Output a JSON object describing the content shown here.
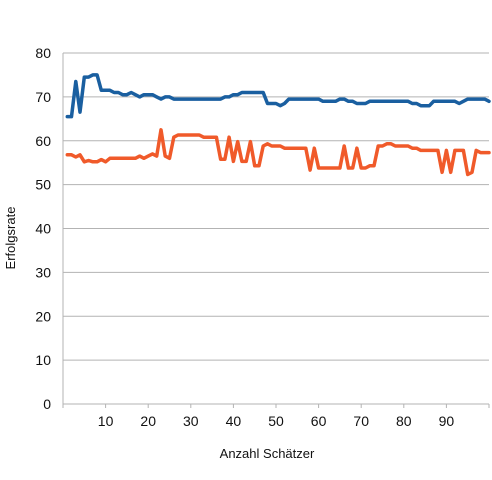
{
  "chart_data": {
    "type": "line",
    "title": "",
    "xlabel": "Anzahl  Schätzer",
    "ylabel": "Erfolgsrate",
    "xlim": [
      0,
      100
    ],
    "ylim": [
      0,
      80
    ],
    "x_ticks": [
      10,
      20,
      30,
      40,
      50,
      60,
      70,
      80,
      90
    ],
    "y_ticks": [
      0,
      10,
      20,
      30,
      40,
      50,
      60,
      70,
      80
    ],
    "grid": "horizontal",
    "legend": "none",
    "x": [
      1,
      2,
      3,
      4,
      5,
      6,
      7,
      8,
      9,
      10,
      11,
      12,
      13,
      14,
      15,
      16,
      17,
      18,
      19,
      20,
      21,
      22,
      23,
      24,
      25,
      26,
      27,
      28,
      29,
      30,
      31,
      32,
      33,
      34,
      35,
      36,
      37,
      38,
      39,
      40,
      41,
      42,
      43,
      44,
      45,
      46,
      47,
      48,
      49,
      50,
      51,
      52,
      53,
      54,
      55,
      56,
      57,
      58,
      59,
      60,
      61,
      62,
      63,
      64,
      65,
      66,
      67,
      68,
      69,
      70,
      71,
      72,
      73,
      74,
      75,
      76,
      77,
      78,
      79,
      80,
      81,
      82,
      83,
      84,
      85,
      86,
      87,
      88,
      89,
      90,
      91,
      92,
      93,
      94,
      95,
      96,
      97,
      98,
      99,
      100
    ],
    "series": [
      {
        "color": "#1a5fa0",
        "values": [
          65.5,
          65.5,
          73.5,
          66.5,
          74.5,
          74.5,
          75,
          75,
          71.5,
          71.5,
          71.5,
          71,
          71,
          70.5,
          70.5,
          71,
          70.5,
          70,
          70.5,
          70.5,
          70.5,
          70,
          69.5,
          70,
          70,
          69.5,
          69.5,
          69.5,
          69.5,
          69.5,
          69.5,
          69.5,
          69.5,
          69.5,
          69.5,
          69.5,
          69.5,
          70,
          70,
          70.5,
          70.5,
          71,
          71,
          71,
          71,
          71,
          71,
          68.5,
          68.5,
          68.5,
          68,
          68.5,
          69.5,
          69.5,
          69.5,
          69.5,
          69.5,
          69.5,
          69.5,
          69.5,
          69,
          69,
          69,
          69,
          69.5,
          69.5,
          69,
          69,
          68.5,
          68.5,
          68.5,
          69,
          69,
          69,
          69,
          69,
          69,
          69,
          69,
          69,
          69,
          68.5,
          68.5,
          68,
          68,
          68,
          69,
          69,
          69,
          69,
          69,
          69,
          68.5,
          69,
          69.5,
          69.5,
          69.5,
          69.5,
          69.5,
          69
        ]
      },
      {
        "color": "#f05a2a",
        "values": [
          56.8,
          56.8,
          56.3,
          56.8,
          55.2,
          55.5,
          55.2,
          55.2,
          55.7,
          55.2,
          56,
          56,
          56,
          56,
          56,
          56,
          56,
          56.5,
          56,
          56.5,
          57,
          56.5,
          62.5,
          56.5,
          56,
          60.8,
          61.3,
          61.3,
          61.3,
          61.3,
          61.3,
          61.3,
          60.8,
          60.8,
          60.8,
          60.8,
          55.8,
          55.8,
          60.8,
          55.3,
          59.8,
          55.3,
          55.3,
          59.8,
          54.3,
          54.3,
          58.8,
          59.3,
          58.8,
          58.8,
          58.8,
          58.3,
          58.3,
          58.3,
          58.3,
          58.3,
          58.3,
          53.3,
          58.3,
          53.8,
          53.8,
          53.8,
          53.8,
          53.8,
          53.8,
          58.8,
          53.8,
          53.8,
          58.3,
          53.8,
          53.8,
          54.3,
          54.3,
          58.8,
          58.8,
          59.3,
          59.3,
          58.8,
          58.8,
          58.8,
          58.8,
          58.3,
          58.3,
          57.8,
          57.8,
          57.8,
          57.8,
          57.8,
          52.8,
          57.8,
          52.8,
          57.8,
          57.8,
          57.8,
          52.3,
          52.8,
          57.8,
          57.3,
          57.3,
          57.3
        ]
      }
    ]
  }
}
